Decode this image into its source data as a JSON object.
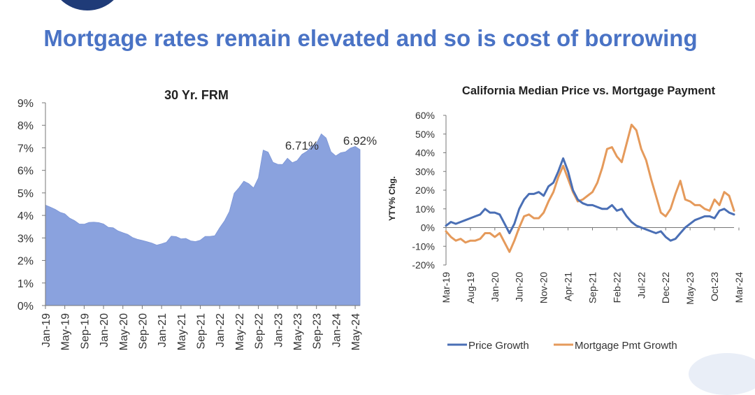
{
  "slide": {
    "title": "Mortgage rates remain elevated and so is cost of borrowing"
  },
  "colors": {
    "title": "#4a73c5",
    "frm_fill": "#8aa2de",
    "price_growth": "#4a6fb5",
    "mortgage_pmt_growth": "#e59a5b"
  },
  "chart_data": [
    {
      "type": "area",
      "title": "30 Yr. FRM",
      "xlabel": "",
      "ylabel": "",
      "ylim": [
        0,
        9
      ],
      "y_ticks": [
        "0%",
        "1%",
        "2%",
        "3%",
        "4%",
        "5%",
        "6%",
        "7%",
        "8%",
        "9%"
      ],
      "x_ticks": [
        "Jan-19",
        "May-19",
        "Sep-19",
        "Jan-20",
        "May-20",
        "Sep-20",
        "Jan-21",
        "May-21",
        "Sep-21",
        "Jan-22",
        "May-22",
        "Sep-22",
        "Jan-23",
        "May-23",
        "Sep-23",
        "Jan-24",
        "May-24"
      ],
      "grid": false,
      "annotations": [
        {
          "text": "6.71%",
          "month": "Jun-23"
        },
        {
          "text": "6.92%",
          "month": "Jun-24"
        }
      ],
      "series": [
        {
          "start": "Jan-19",
          "values": [
            4.46,
            4.37,
            4.27,
            4.14,
            4.07,
            3.88,
            3.77,
            3.62,
            3.61,
            3.69,
            3.7,
            3.68,
            3.62,
            3.47,
            3.45,
            3.31,
            3.23,
            3.16,
            3.02,
            2.94,
            2.89,
            2.83,
            2.77,
            2.68,
            2.74,
            2.81,
            3.08,
            3.06,
            2.96,
            2.98,
            2.87,
            2.84,
            2.9,
            3.07,
            3.07,
            3.1,
            3.45,
            3.76,
            4.17,
            4.98,
            5.23,
            5.52,
            5.41,
            5.22,
            5.66,
            6.9,
            6.81,
            6.36,
            6.27,
            6.26,
            6.54,
            6.34,
            6.43,
            6.71,
            6.84,
            7.07,
            7.2,
            7.62,
            7.44,
            6.82,
            6.64,
            6.78,
            6.82,
            6.99,
            7.06,
            6.92
          ]
        }
      ]
    },
    {
      "type": "line",
      "title": "California Median Price vs. Mortgage Payment",
      "xlabel": "",
      "ylabel": "YTY% Chg.",
      "ylim": [
        -20,
        60
      ],
      "y_ticks": [
        "60%",
        "50%",
        "40%",
        "30%",
        "20%",
        "10%",
        "0%",
        "-10%",
        "-20%"
      ],
      "x_ticks": [
        "Mar-19",
        "Aug-19",
        "Jan-20",
        "Jun-20",
        "Nov-20",
        "Apr-21",
        "Sep-21",
        "Feb-22",
        "Jul-22",
        "Dec-22",
        "May-23",
        "Oct-23",
        "Mar-24"
      ],
      "legend": "bottom",
      "series": [
        {
          "name": "Price Growth",
          "start": "Mar-19",
          "values": [
            1,
            3,
            2,
            3,
            4,
            5,
            6,
            7,
            10,
            8,
            8,
            7,
            2,
            -3,
            2,
            10,
            15,
            18,
            18,
            19,
            17,
            22,
            24,
            30,
            37,
            30,
            20,
            15,
            13,
            12,
            12,
            11,
            10,
            10,
            12,
            9,
            10,
            6,
            3,
            1,
            0,
            -1,
            -2,
            -3,
            -2,
            -5,
            -7,
            -6,
            -3,
            0,
            2,
            4,
            5,
            6,
            6,
            5,
            9,
            10,
            8,
            7
          ]
        },
        {
          "name": "Mortgage Pmt Growth",
          "start": "Mar-19",
          "values": [
            -2,
            -5,
            -7,
            -6,
            -8,
            -7,
            -7,
            -6,
            -3,
            -3,
            -5,
            -3,
            -8,
            -13,
            -7,
            0,
            6,
            7,
            5,
            5,
            8,
            14,
            19,
            27,
            33,
            26,
            19,
            14,
            15,
            17,
            19,
            24,
            32,
            42,
            43,
            38,
            35,
            45,
            55,
            52,
            42,
            36,
            26,
            17,
            8,
            6,
            10,
            18,
            25,
            15,
            14,
            12,
            12,
            10,
            9,
            15,
            12,
            19,
            17,
            9
          ]
        }
      ]
    }
  ]
}
